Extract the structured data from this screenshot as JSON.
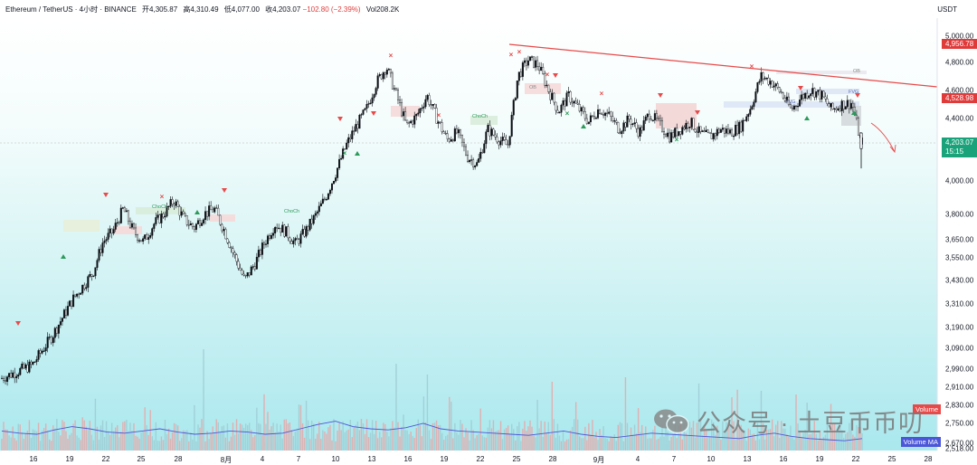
{
  "header": {
    "symbol": "Ethereum / TetherUS · 4小时 · BINANCE",
    "open_label": "开",
    "open": "4,305.87",
    "high_label": "高",
    "high": "4,310.49",
    "low_label": "低",
    "low": "4,077.00",
    "close_label": "收",
    "close": "4,203.07",
    "change": "−102.80 (−2.39%)",
    "vol_label": "Vol",
    "vol": "208.2K"
  },
  "quote_unit": "USDT",
  "price_tags": {
    "tag1": "4,956.78",
    "tag2": "4,528.98",
    "last_price": "4,203.07",
    "countdown": "15:15"
  },
  "volume_tags": {
    "volume": "Volume",
    "volume_ma": "Volume MA"
  },
  "watermark": "公众号 · 土豆币币叨",
  "colors": {
    "up": "#0b0f14",
    "down": "#ffffff",
    "trendline": "#e84a4a",
    "bg_top": "#ffffff",
    "bg_bottom": "#a7e8ee",
    "volume_ma": "#4b56d8"
  },
  "chart_data": {
    "type": "candlestick",
    "scale": "log",
    "ylim": [
      2518,
      5000
    ],
    "y_ticks": [
      "5,000.00",
      "4,800.00",
      "4,600.00",
      "4,400.00",
      "4,200.00",
      "4,000.00",
      "3,800.00",
      "3,650.00",
      "3,550.00",
      "3,430.00",
      "3,310.00",
      "3,190.00",
      "3,090.00",
      "2,990.00",
      "2,910.00",
      "2,830.00",
      "2,750.00",
      "2,670.00",
      "2,590.00",
      "2,518.00"
    ],
    "x_ticks": [
      "16",
      "19",
      "22",
      "25",
      "28",
      "8月",
      "4",
      "7",
      "10",
      "13",
      "16",
      "19",
      "22",
      "25",
      "28",
      "9月",
      "4",
      "7",
      "10",
      "13",
      "16",
      "19",
      "22",
      "25",
      "28"
    ],
    "price_path": [
      [
        0,
        2950
      ],
      [
        3,
        3010
      ],
      [
        5,
        3150
      ],
      [
        7,
        3330
      ],
      [
        9,
        3470
      ],
      [
        10,
        3640
      ],
      [
        11,
        3700
      ],
      [
        12,
        3830
      ],
      [
        13,
        3700
      ],
      [
        14,
        3640
      ],
      [
        15,
        3740
      ],
      [
        16,
        3800
      ],
      [
        17,
        3880
      ],
      [
        18,
        3770
      ],
      [
        19,
        3720
      ],
      [
        20,
        3800
      ],
      [
        21,
        3830
      ],
      [
        22,
        3700
      ],
      [
        23,
        3560
      ],
      [
        24,
        3430
      ],
      [
        25,
        3520
      ],
      [
        26,
        3640
      ],
      [
        27,
        3740
      ],
      [
        28,
        3700
      ],
      [
        29,
        3630
      ],
      [
        30,
        3700
      ],
      [
        31,
        3790
      ],
      [
        32,
        3900
      ],
      [
        33,
        4050
      ],
      [
        34,
        4220
      ],
      [
        35,
        4350
      ],
      [
        36,
        4460
      ],
      [
        37,
        4650
      ],
      [
        38,
        4770
      ],
      [
        39,
        4560
      ],
      [
        40,
        4350
      ],
      [
        41,
        4420
      ],
      [
        42,
        4560
      ],
      [
        43,
        4400
      ],
      [
        44,
        4260
      ],
      [
        45,
        4310
      ],
      [
        46,
        4150
      ],
      [
        47,
        4100
      ],
      [
        48,
        4330
      ],
      [
        49,
        4270
      ],
      [
        50,
        4220
      ],
      [
        51,
        4700
      ],
      [
        52,
        4820
      ],
      [
        53,
        4780
      ],
      [
        54,
        4600
      ],
      [
        55,
        4450
      ],
      [
        56,
        4560
      ],
      [
        57,
        4470
      ],
      [
        58,
        4380
      ],
      [
        59,
        4470
      ],
      [
        60,
        4420
      ],
      [
        61,
        4330
      ],
      [
        62,
        4400
      ],
      [
        63,
        4310
      ],
      [
        64,
        4440
      ],
      [
        65,
        4360
      ],
      [
        66,
        4280
      ],
      [
        67,
        4330
      ],
      [
        68,
        4380
      ],
      [
        69,
        4300
      ],
      [
        70,
        4280
      ],
      [
        71,
        4330
      ],
      [
        72,
        4310
      ],
      [
        73,
        4350
      ],
      [
        74,
        4480
      ],
      [
        75,
        4700
      ],
      [
        76,
        4660
      ],
      [
        77,
        4580
      ],
      [
        78,
        4460
      ],
      [
        79,
        4550
      ],
      [
        80,
        4600
      ],
      [
        81,
        4560
      ],
      [
        82,
        4460
      ],
      [
        83,
        4500
      ],
      [
        84,
        4510
      ],
      [
        85,
        4203
      ]
    ],
    "volume_ma": [
      0.18,
      0.16,
      0.15,
      0.19,
      0.22,
      0.2,
      0.17,
      0.16,
      0.18,
      0.2,
      0.17,
      0.15,
      0.16,
      0.18,
      0.17,
      0.15,
      0.16,
      0.2,
      0.24,
      0.27,
      0.22,
      0.2,
      0.19,
      0.21,
      0.25,
      0.2,
      0.18,
      0.17,
      0.16,
      0.15,
      0.14,
      0.16,
      0.18,
      0.15,
      0.13,
      0.12,
      0.14,
      0.16,
      0.15,
      0.14,
      0.13,
      0.12,
      0.11,
      0.14,
      0.16,
      0.13,
      0.11,
      0.1,
      0.09,
      0.11
    ],
    "annotations": [
      "ChoCh",
      "ChoCh",
      "ChoCh",
      "FVG",
      "FVG",
      "OB",
      "OB"
    ]
  }
}
